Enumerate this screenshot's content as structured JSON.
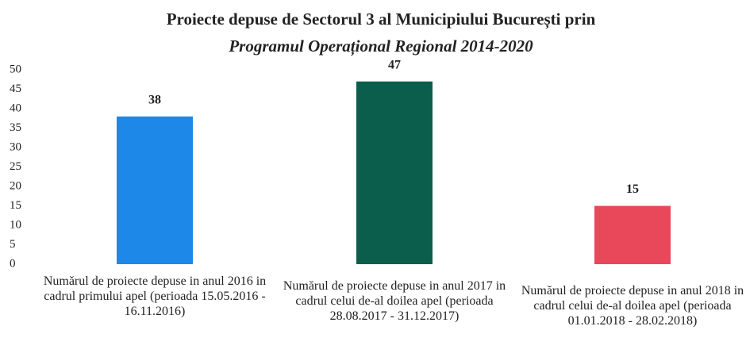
{
  "chart_data": {
    "type": "bar",
    "title": "Proiecte depuse de Sectorul 3 al Municipiului București prin",
    "subtitle": "Programul Operațional Regional 2014-2020",
    "categories": [
      "Numărul de proiecte depuse in anul 2016 in cadrul primului apel (perioada 15.05.2016 - 16.11.2016)",
      "Numărul de proiecte depuse in anul 2017 in cadrul celui de-al doilea apel (perioada 28.08.2017 - 31.12.2017)",
      "Numărul de proiecte depuse in anul 2018 in cadrul celui de-al doilea apel (perioada 01.01.2018 - 28.02.2018)"
    ],
    "values": [
      38,
      47,
      15
    ],
    "colors": [
      "#1e88e8",
      "#0b5e4c",
      "#e8485a"
    ],
    "ylim": [
      0,
      50
    ],
    "yticks": [
      0,
      5,
      10,
      15,
      20,
      25,
      30,
      35,
      40,
      45,
      50
    ],
    "grid": false
  }
}
